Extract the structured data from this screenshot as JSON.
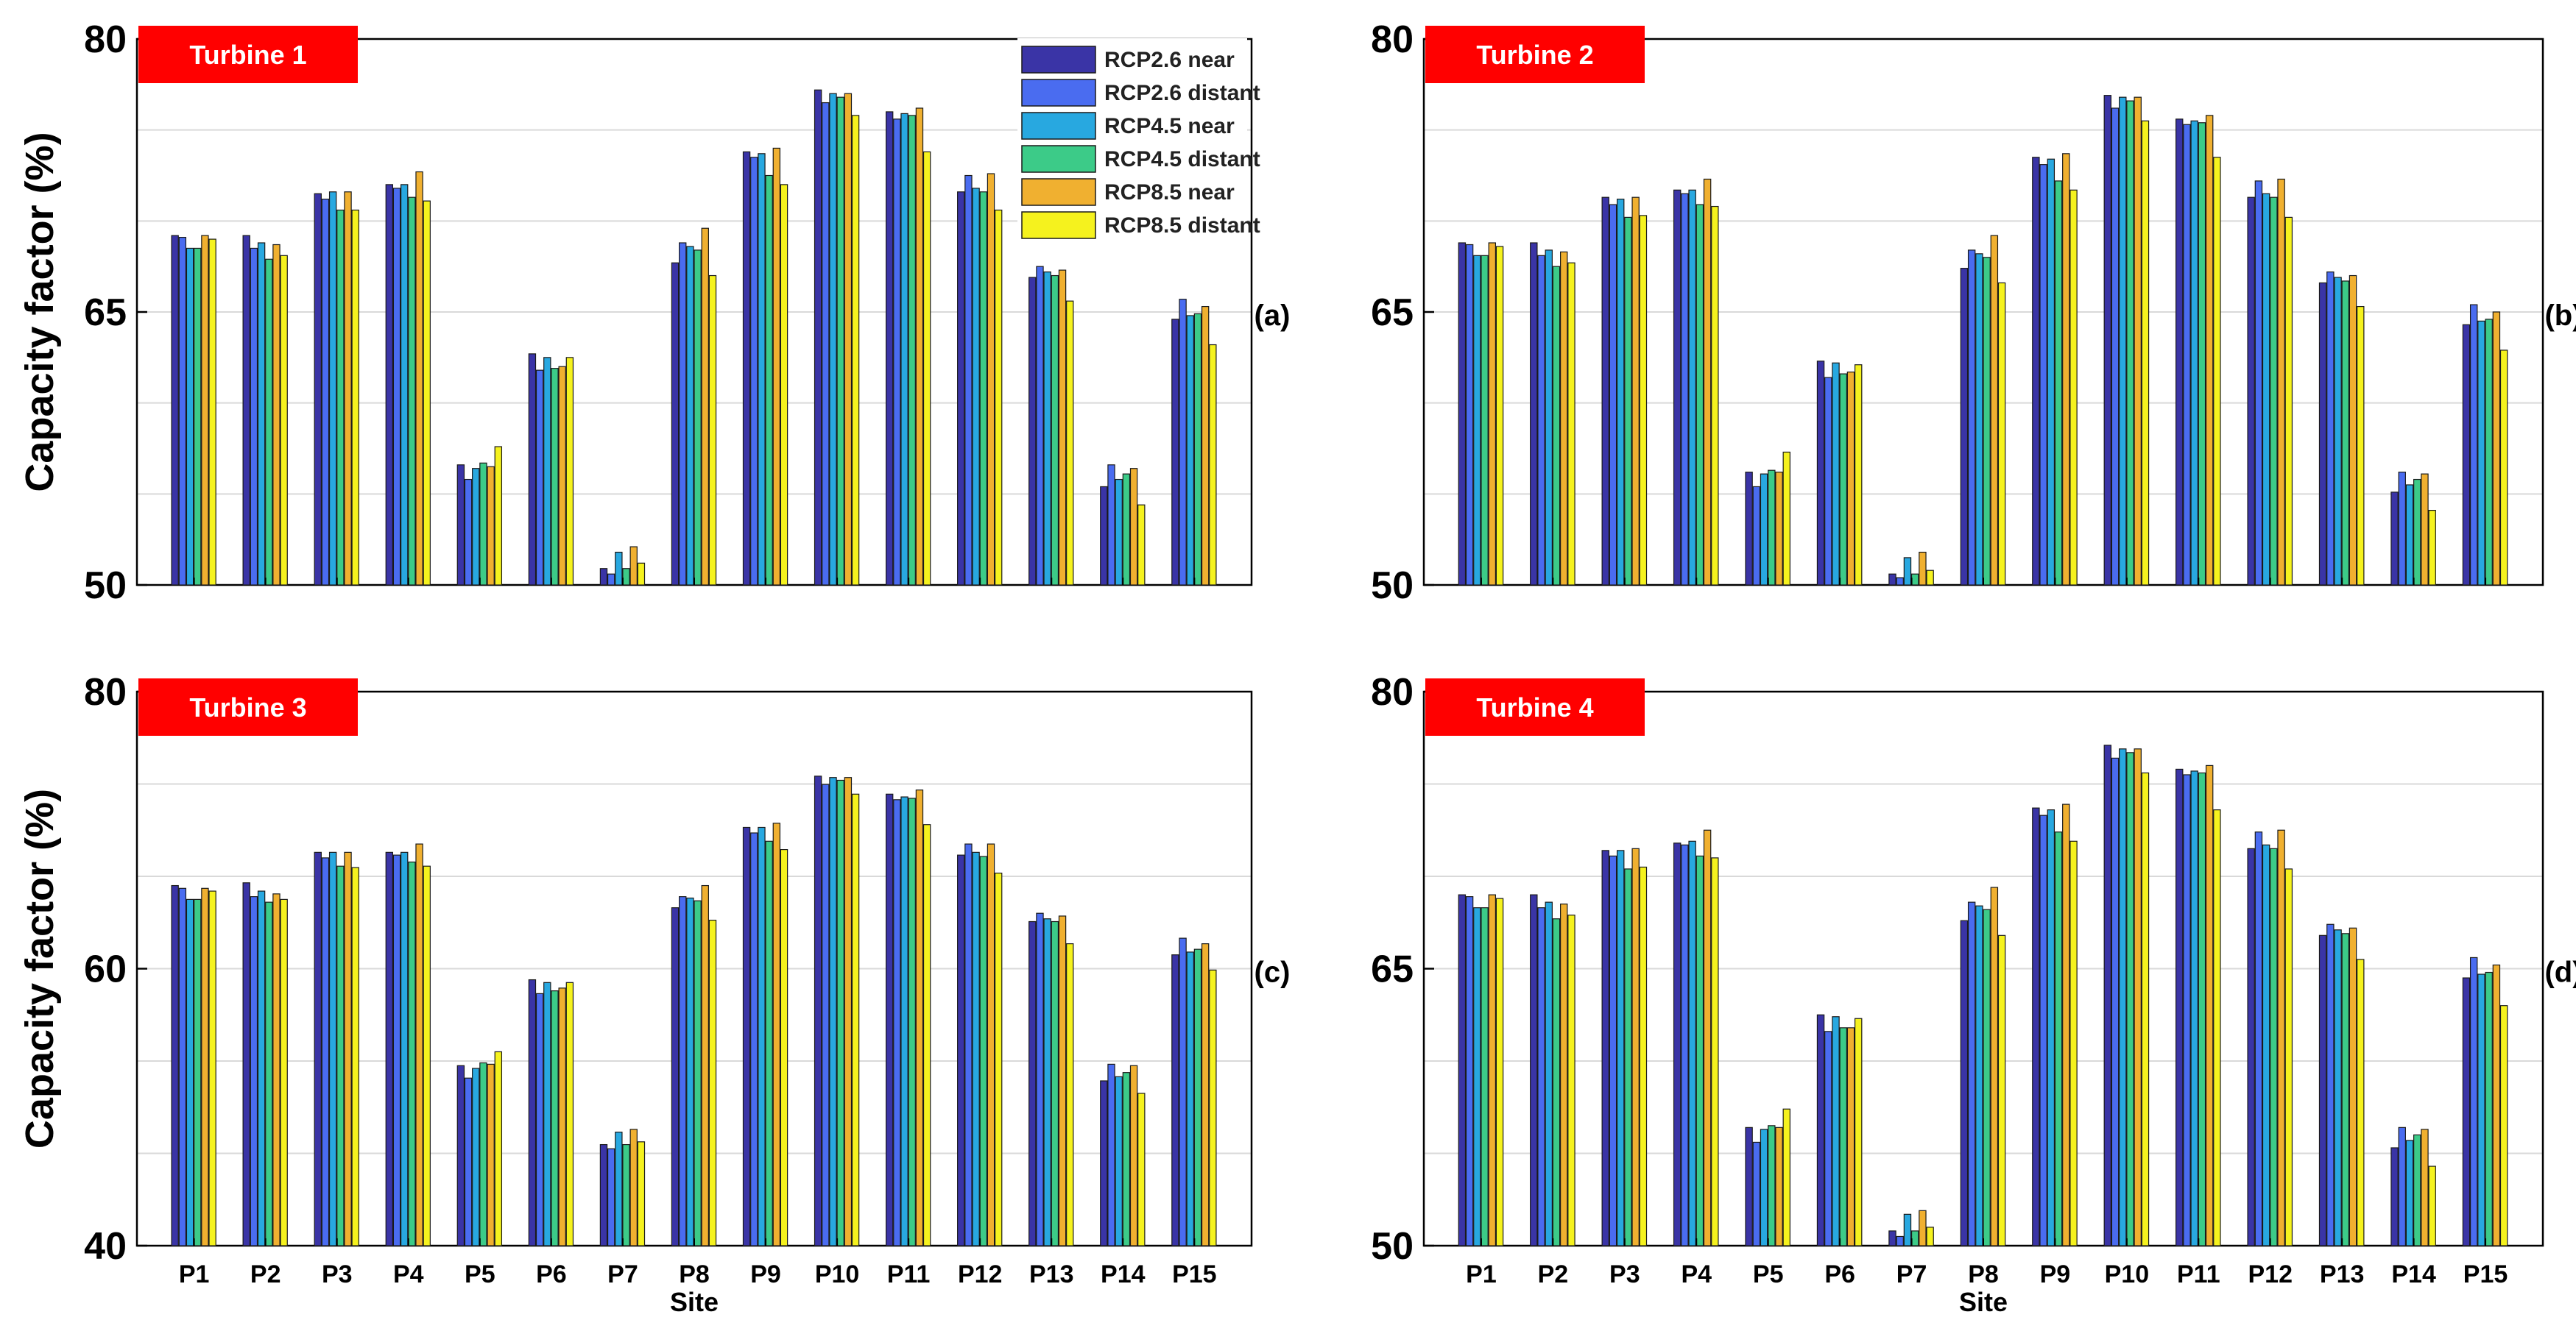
{
  "colors": {
    "series": [
      "#3a34a6",
      "#4a6cf0",
      "#28a8e0",
      "#3ccb88",
      "#f0b030",
      "#f5f21e"
    ],
    "badge_bg": "#ff0000",
    "badge_text": "#ffffff",
    "grid": "#d9d9d9",
    "axis": "#000000"
  },
  "legend_items": [
    "RCP2.6 near",
    "RCP2.6 distant",
    "RCP4.5 near",
    "RCP4.5 distant",
    "RCP8.5 near",
    "RCP8.5 distant"
  ],
  "chart_data": [
    {
      "type": "bar",
      "title": "Turbine 1",
      "panel_label": "(a)",
      "ylabel": "Capacity factor (%)",
      "xlabel": "",
      "ylim": [
        50,
        80
      ],
      "yticks": [
        50,
        65,
        80
      ],
      "categories": [
        "P1",
        "P2",
        "P3",
        "P4",
        "P5",
        "P6",
        "P7",
        "P8",
        "P9",
        "P10",
        "P11",
        "P12",
        "P13",
        "P14",
        "P15"
      ],
      "series": [
        {
          "name": "RCP2.6 near",
          "values": [
            69.2,
            69.2,
            71.5,
            72.0,
            56.6,
            62.7,
            50.9,
            67.7,
            73.8,
            77.2,
            76.0,
            71.6,
            66.9,
            55.4,
            64.6
          ]
        },
        {
          "name": "RCP2.6 distant",
          "values": [
            69.1,
            68.5,
            71.2,
            71.8,
            55.8,
            61.8,
            50.6,
            68.8,
            73.5,
            76.5,
            75.6,
            72.5,
            67.5,
            56.6,
            65.7
          ]
        },
        {
          "name": "RCP4.5 near",
          "values": [
            68.5,
            68.8,
            71.6,
            72.0,
            56.4,
            62.5,
            51.8,
            68.6,
            73.7,
            77.0,
            75.9,
            71.8,
            67.2,
            55.8,
            64.8
          ]
        },
        {
          "name": "RCP4.5 distant",
          "values": [
            68.5,
            67.9,
            70.6,
            71.3,
            56.7,
            61.9,
            50.9,
            68.4,
            72.5,
            76.8,
            75.8,
            71.6,
            67.0,
            56.1,
            64.9
          ]
        },
        {
          "name": "RCP8.5 near",
          "values": [
            69.2,
            68.7,
            71.6,
            72.7,
            56.5,
            62.0,
            52.1,
            69.6,
            74.0,
            77.0,
            76.2,
            72.6,
            67.3,
            56.4,
            65.3
          ]
        },
        {
          "name": "RCP8.5 distant",
          "values": [
            69.0,
            68.1,
            70.6,
            71.1,
            57.6,
            62.5,
            51.2,
            67.0,
            72.0,
            75.8,
            73.8,
            70.6,
            65.6,
            54.4,
            63.2
          ]
        }
      ]
    },
    {
      "type": "bar",
      "title": "Turbine 2",
      "panel_label": "(b)",
      "ylabel": "",
      "xlabel": "",
      "ylim": [
        50,
        80
      ],
      "yticks": [
        50,
        65,
        80
      ],
      "categories": [
        "P1",
        "P2",
        "P3",
        "P4",
        "P5",
        "P6",
        "P7",
        "P8",
        "P9",
        "P10",
        "P11",
        "P12",
        "P13",
        "P14",
        "P15"
      ],
      "series": [
        {
          "name": "RCP2.6 near",
          "values": [
            68.8,
            68.8,
            71.3,
            71.7,
            56.2,
            62.3,
            50.6,
            67.4,
            73.5,
            76.9,
            75.6,
            71.3,
            66.6,
            55.1,
            64.3
          ]
        },
        {
          "name": "RCP2.6 distant",
          "values": [
            68.7,
            68.1,
            70.9,
            71.5,
            55.4,
            61.4,
            50.4,
            68.4,
            73.1,
            76.2,
            75.3,
            72.2,
            67.2,
            56.2,
            65.4
          ]
        },
        {
          "name": "RCP4.5 near",
          "values": [
            68.1,
            68.4,
            71.2,
            71.7,
            56.1,
            62.2,
            51.5,
            68.2,
            73.4,
            76.8,
            75.5,
            71.5,
            66.9,
            55.5,
            64.5
          ]
        },
        {
          "name": "RCP4.5 distant",
          "values": [
            68.1,
            67.5,
            70.2,
            70.9,
            56.3,
            61.6,
            50.6,
            68.0,
            72.2,
            76.6,
            75.4,
            71.3,
            66.7,
            55.8,
            64.6
          ]
        },
        {
          "name": "RCP8.5 near",
          "values": [
            68.8,
            68.3,
            71.3,
            72.3,
            56.2,
            61.7,
            51.8,
            69.2,
            73.7,
            76.8,
            75.8,
            72.3,
            67.0,
            56.1,
            65.0
          ]
        },
        {
          "name": "RCP8.5 distant",
          "values": [
            68.6,
            67.7,
            70.3,
            70.8,
            57.3,
            62.1,
            50.8,
            66.6,
            71.7,
            75.5,
            73.5,
            70.2,
            65.3,
            54.1,
            62.9
          ]
        }
      ]
    },
    {
      "type": "bar",
      "title": "Turbine 3",
      "panel_label": "(c)",
      "ylabel": "Capacity factor (%)",
      "xlabel": "Site",
      "ylim": [
        40,
        80
      ],
      "yticks": [
        40,
        60,
        80
      ],
      "categories": [
        "P1",
        "P2",
        "P3",
        "P4",
        "P5",
        "P6",
        "P7",
        "P8",
        "P9",
        "P10",
        "P11",
        "P12",
        "P13",
        "P14",
        "P15"
      ],
      "series": [
        {
          "name": "RCP2.6 near",
          "values": [
            66.0,
            66.2,
            68.4,
            68.4,
            53.0,
            59.2,
            47.3,
            64.4,
            70.2,
            73.9,
            72.6,
            68.2,
            63.4,
            51.9,
            61.0
          ]
        },
        {
          "name": "RCP2.6 distant",
          "values": [
            65.8,
            65.2,
            68.0,
            68.2,
            52.1,
            58.2,
            47.0,
            65.2,
            69.8,
            73.3,
            72.2,
            69.0,
            64.0,
            53.1,
            62.2
          ]
        },
        {
          "name": "RCP4.5 near",
          "values": [
            65.0,
            65.6,
            68.4,
            68.4,
            52.8,
            59.0,
            48.2,
            65.1,
            70.2,
            73.8,
            72.4,
            68.4,
            63.6,
            52.2,
            61.2
          ]
        },
        {
          "name": "RCP4.5 distant",
          "values": [
            65.0,
            64.8,
            67.4,
            67.7,
            53.2,
            58.4,
            47.3,
            64.9,
            69.2,
            73.6,
            72.3,
            68.1,
            63.4,
            52.5,
            61.4
          ]
        },
        {
          "name": "RCP8.5 near",
          "values": [
            65.8,
            65.4,
            68.4,
            69.0,
            53.1,
            58.6,
            48.4,
            66.0,
            70.5,
            73.8,
            72.9,
            69.0,
            63.8,
            53.0,
            61.8
          ]
        },
        {
          "name": "RCP8.5 distant",
          "values": [
            65.6,
            65.0,
            67.3,
            67.4,
            54.0,
            59.0,
            47.5,
            63.5,
            68.6,
            72.6,
            70.4,
            66.9,
            61.8,
            51.0,
            59.9
          ]
        }
      ]
    },
    {
      "type": "bar",
      "title": "Turbine 4",
      "panel_label": "(d)",
      "ylabel": "",
      "xlabel": "Site",
      "ylim": [
        50,
        80
      ],
      "yticks": [
        50,
        65,
        80
      ],
      "categories": [
        "P1",
        "P2",
        "P3",
        "P4",
        "P5",
        "P6",
        "P7",
        "P8",
        "P9",
        "P10",
        "P11",
        "P12",
        "P13",
        "P14",
        "P15"
      ],
      "series": [
        {
          "name": "RCP2.6 near",
          "values": [
            69.0,
            69.0,
            71.4,
            71.8,
            56.4,
            62.5,
            50.8,
            67.6,
            73.7,
            77.1,
            75.8,
            71.5,
            66.8,
            55.3,
            64.5
          ]
        },
        {
          "name": "RCP2.6 distant",
          "values": [
            68.9,
            68.3,
            71.1,
            71.7,
            55.6,
            61.6,
            50.5,
            68.6,
            73.3,
            76.4,
            75.5,
            72.4,
            67.4,
            56.4,
            65.6
          ]
        },
        {
          "name": "RCP4.5 near",
          "values": [
            68.3,
            68.6,
            71.4,
            71.9,
            56.3,
            62.4,
            51.7,
            68.4,
            73.6,
            76.9,
            75.7,
            71.7,
            67.1,
            55.7,
            64.7
          ]
        },
        {
          "name": "RCP4.5 distant",
          "values": [
            68.3,
            67.7,
            70.4,
            71.1,
            56.5,
            61.8,
            50.8,
            68.2,
            72.4,
            76.7,
            75.6,
            71.5,
            66.9,
            56.0,
            64.8
          ]
        },
        {
          "name": "RCP8.5 near",
          "values": [
            69.0,
            68.5,
            71.5,
            72.5,
            56.4,
            61.8,
            51.9,
            69.4,
            73.9,
            76.9,
            76.0,
            72.5,
            67.2,
            56.3,
            65.2
          ]
        },
        {
          "name": "RCP8.5 distant",
          "values": [
            68.8,
            67.9,
            70.5,
            71.0,
            57.4,
            62.3,
            51.0,
            66.8,
            71.9,
            75.6,
            73.6,
            70.4,
            65.5,
            54.3,
            63.0
          ]
        }
      ]
    }
  ]
}
